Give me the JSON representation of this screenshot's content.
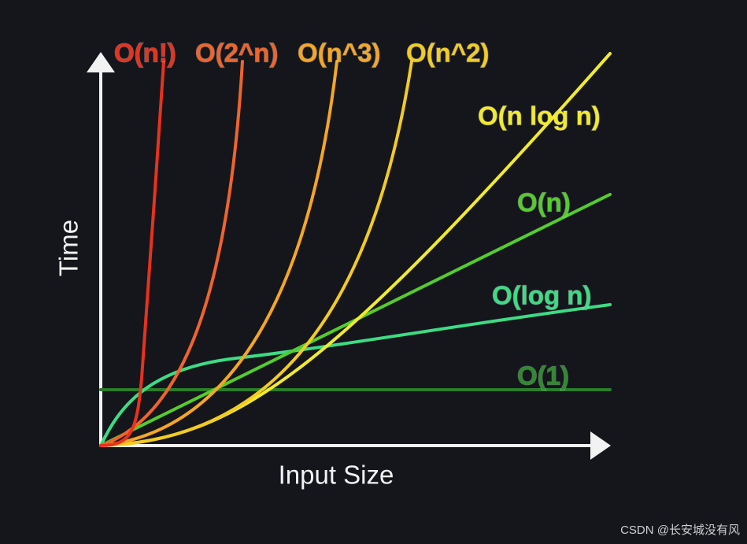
{
  "axes": {
    "y_label": "Time",
    "x_label": "Input Size"
  },
  "curves": [
    {
      "label": "O(n!)"
    },
    {
      "label": "O(2^n)"
    },
    {
      "label": "O(n^3)"
    },
    {
      "label": "O(n^2)"
    },
    {
      "label": "O(n log n)"
    },
    {
      "label": "O(n)"
    },
    {
      "label": "O(log n)"
    },
    {
      "label": "O(1)"
    }
  ],
  "watermark": "CSDN @长安城没有风"
}
